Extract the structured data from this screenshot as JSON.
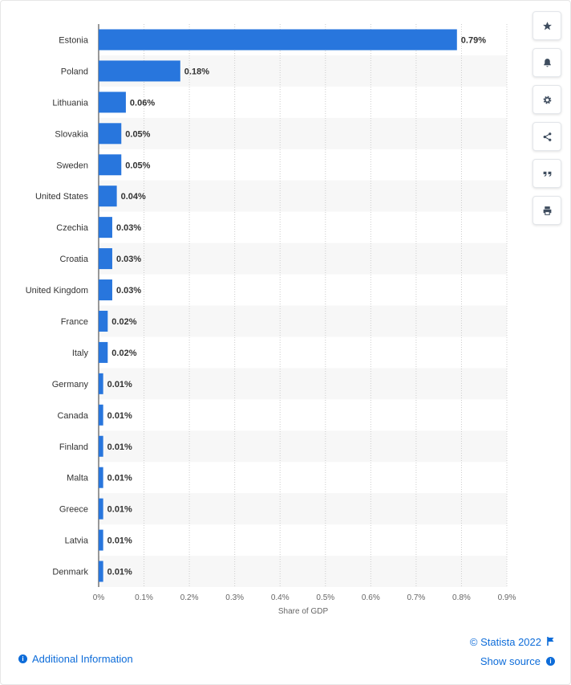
{
  "chart_data": {
    "type": "bar",
    "orientation": "horizontal",
    "categories": [
      "Estonia",
      "Poland",
      "Lithuania",
      "Slovakia",
      "Sweden",
      "United States",
      "Czechia",
      "Croatia",
      "United Kingdom",
      "France",
      "Italy",
      "Germany",
      "Canada",
      "Finland",
      "Malta",
      "Greece",
      "Latvia",
      "Denmark"
    ],
    "values": [
      0.79,
      0.18,
      0.06,
      0.05,
      0.05,
      0.04,
      0.03,
      0.03,
      0.03,
      0.02,
      0.02,
      0.01,
      0.01,
      0.01,
      0.01,
      0.01,
      0.01,
      0.01
    ],
    "value_labels": [
      "0.79%",
      "0.18%",
      "0.06%",
      "0.05%",
      "0.05%",
      "0.04%",
      "0.03%",
      "0.03%",
      "0.03%",
      "0.02%",
      "0.02%",
      "0.01%",
      "0.01%",
      "0.01%",
      "0.01%",
      "0.01%",
      "0.01%",
      "0.01%"
    ],
    "xlim": [
      0,
      0.9
    ],
    "xticks": [
      "0%",
      "0.1%",
      "0.2%",
      "0.3%",
      "0.4%",
      "0.5%",
      "0.6%",
      "0.7%",
      "0.8%",
      "0.9%"
    ],
    "xlabel": "Share of GDP",
    "ylabel": "",
    "title": "",
    "grid": true,
    "bar_color": "#2876dd",
    "stripe_color": "#f7f7f7"
  },
  "toolbar": {
    "buttons": [
      "star-icon",
      "bell-icon",
      "gear-icon",
      "share-icon",
      "quote-icon",
      "print-icon"
    ]
  },
  "footer": {
    "additional_info": "Additional Information",
    "copyright": "© Statista 2022",
    "show_source": "Show source"
  },
  "colors": {
    "link": "#0d6cd9",
    "icon": "#3f4d5f"
  }
}
